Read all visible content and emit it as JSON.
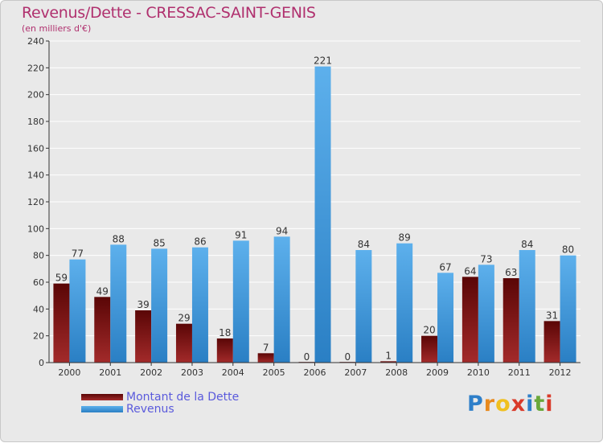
{
  "header": {
    "title": "Revenus/Dette - CRESSAC-SAINT-GENIS",
    "subtitle": "(en milliers d'€)"
  },
  "legend": {
    "items": [
      {
        "label": "Montant de la Dette",
        "color": "#7a1010"
      },
      {
        "label": "Revenus",
        "color": "#4da3e6"
      }
    ]
  },
  "logo": {
    "text": "Proxiti",
    "letters": [
      "P",
      "r",
      "o",
      "x",
      "i",
      "t",
      "i"
    ],
    "colors": [
      "#2e7fc9",
      "#e88a1e",
      "#f0c020",
      "#d93a2a",
      "#2e7fc9",
      "#6aa83a",
      "#d93a2a"
    ]
  },
  "colors": {
    "dette_dark": "#5a0606",
    "dette_light": "#a32a2a",
    "revenus_dark": "#2a7fc4",
    "revenus_light": "#5db0ec",
    "axis": "#333333",
    "grid": "#ffffff"
  },
  "chart_data": {
    "type": "bar",
    "title": "Revenus/Dette - CRESSAC-SAINT-GENIS",
    "subtitle": "(en milliers d'€)",
    "xlabel": "",
    "ylabel": "",
    "ylim": [
      0,
      240
    ],
    "yticks": [
      0,
      20,
      40,
      60,
      80,
      100,
      120,
      140,
      160,
      180,
      200,
      220,
      240
    ],
    "grid": true,
    "legend_position": "bottom-left",
    "categories": [
      "2000",
      "2001",
      "2002",
      "2003",
      "2004",
      "2005",
      "2006",
      "2007",
      "2008",
      "2009",
      "2010",
      "2011",
      "2012"
    ],
    "series": [
      {
        "name": "Montant de la Dette",
        "values": [
          59,
          49,
          39,
          29,
          18,
          7,
          0,
          0,
          1,
          20,
          64,
          63,
          31
        ]
      },
      {
        "name": "Revenus",
        "values": [
          77,
          88,
          85,
          86,
          91,
          94,
          221,
          84,
          89,
          67,
          73,
          84,
          80
        ]
      }
    ]
  }
}
